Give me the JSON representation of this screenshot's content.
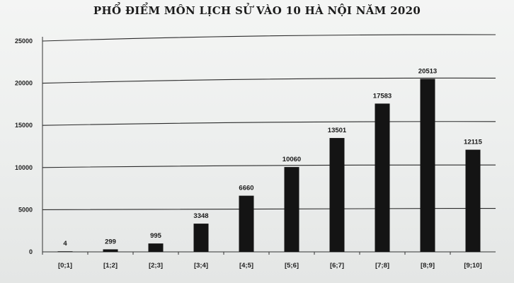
{
  "chart_data": {
    "type": "bar",
    "title": "PHỔ ĐIỂM MÔN LỊCH SỬ VÀO 10 HÀ NỘI NĂM 2020",
    "xlabel": "",
    "ylabel": "",
    "categories": [
      "[0;1]",
      "[1;2]",
      "[2;3]",
      "[3;4]",
      "[4;5]",
      "[5;6]",
      "[6;7]",
      "[7;8]",
      "[8;9]",
      "[9;10]"
    ],
    "values": [
      4,
      299,
      995,
      3348,
      6660,
      10060,
      13501,
      17583,
      20513,
      12115
    ],
    "ylim": [
      0,
      25000
    ],
    "yticks": [
      0,
      5000,
      10000,
      15000,
      20000,
      25000
    ],
    "grid": true,
    "legend": "none",
    "colors": {
      "bar": "#141414",
      "grid": "#2b2b2b",
      "axis": "#333333",
      "background": "#eef0ef"
    }
  }
}
